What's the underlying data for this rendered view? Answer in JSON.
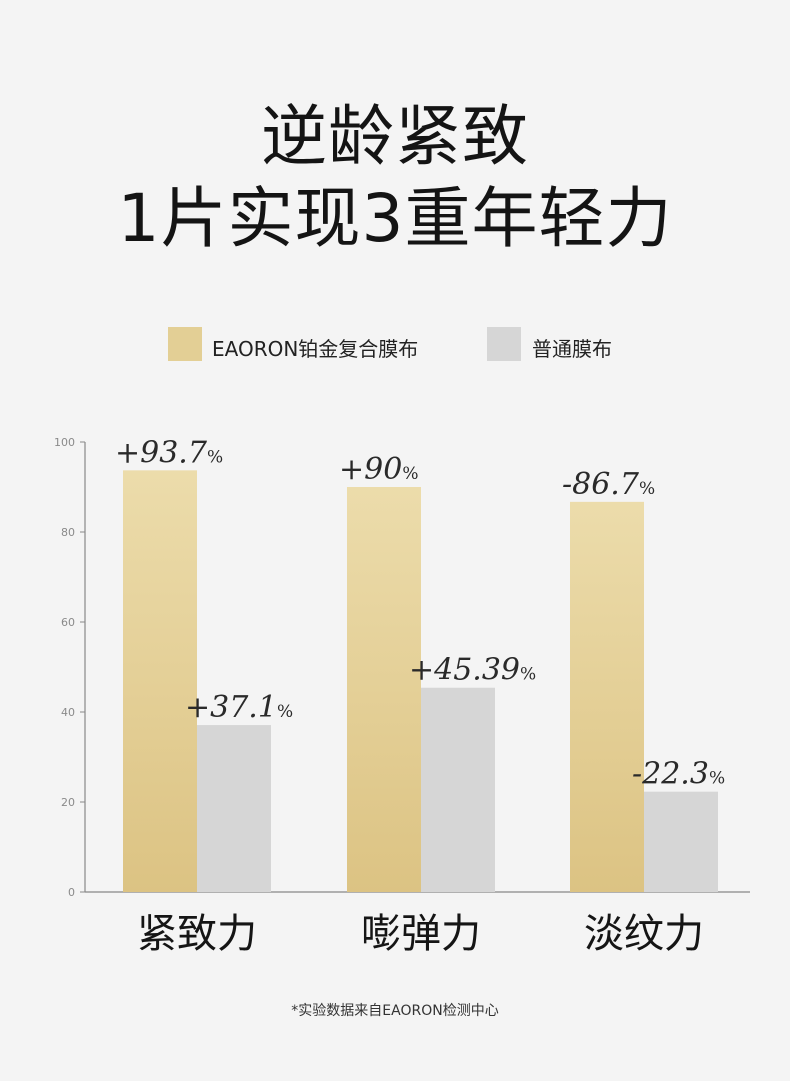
{
  "header": {
    "line1": "逆龄紧致",
    "line2": "1片实现3重年轻力"
  },
  "legend": [
    {
      "label": "EAORON铂金复合膜布",
      "color": "#e3cf95"
    },
    {
      "label": "普通膜布",
      "color": "#d6d6d6"
    }
  ],
  "footnote": "*实验数据来自EAORON检测中心",
  "chart_data": {
    "type": "bar",
    "categories": [
      "紧致力",
      "嘭弹力",
      "淡纹力"
    ],
    "series": [
      {
        "name": "EAORON铂金复合膜布",
        "values": [
          93.7,
          90,
          86.7
        ],
        "labels": [
          "+93.7",
          "+90",
          "-86.7"
        ],
        "color": "#e3cf95"
      },
      {
        "name": "普通膜布",
        "values": [
          37.1,
          45.39,
          22.3
        ],
        "labels": [
          "+37.1",
          "+45.39",
          "-22.3"
        ],
        "color": "#d6d6d6"
      }
    ],
    "label_unit": "%",
    "yticks": [
      0,
      20,
      40,
      60,
      80,
      100
    ],
    "ylim": [
      0,
      100
    ],
    "grid": false
  }
}
